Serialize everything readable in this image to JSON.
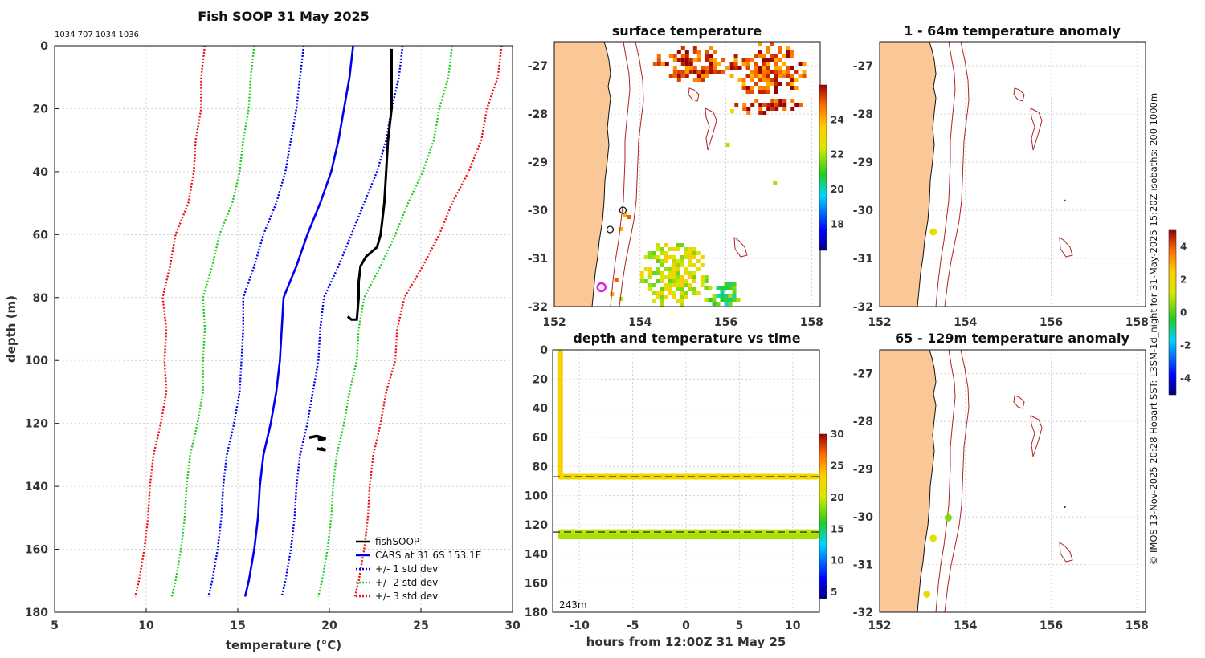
{
  "colors": {
    "land": "#f9c896",
    "coast": "#111111",
    "isobath": "#b22222",
    "fish": "#000000",
    "cars": "#0000ee",
    "std1": "#0000ee",
    "std2": "#22cc22",
    "std3": "#ee1111"
  },
  "chart_data": [
    {
      "id": "profile",
      "type": "line",
      "title": "Fish SOOP 31 May 2025",
      "subtitle": "1034 707 1034 1036",
      "xlabel": "temperature (°C)",
      "ylabel": "depth (m)",
      "xlim": [
        5,
        30
      ],
      "ylim": [
        180,
        0
      ],
      "xticks": [
        5,
        10,
        15,
        20,
        25,
        30
      ],
      "yticks": [
        0,
        20,
        40,
        60,
        80,
        100,
        120,
        140,
        160,
        180
      ],
      "depths": [
        0,
        10,
        20,
        30,
        40,
        50,
        60,
        70,
        80,
        90,
        100,
        110,
        120,
        130,
        140,
        150,
        160,
        170,
        175
      ],
      "cars_mean": [
        21.3,
        21.1,
        20.8,
        20.5,
        20.1,
        19.5,
        18.8,
        18.2,
        17.5,
        17.4,
        17.3,
        17.1,
        16.8,
        16.4,
        16.2,
        16.1,
        15.9,
        15.6,
        15.4
      ],
      "std_dev": [
        2.7,
        2.7,
        2.6,
        2.6,
        2.5,
        2.4,
        2.4,
        2.3,
        2.2,
        2.1,
        2.1,
        2.0,
        2.0,
        2.0,
        2.0,
        2.0,
        2.0,
        2.0,
        2.0
      ],
      "fish_soop": {
        "x": [
          23.4,
          23.4,
          23.4,
          23.2,
          23.1,
          23.0,
          22.9,
          22.8,
          22.6,
          22.0,
          21.7,
          21.6,
          21.6,
          21.5,
          21.2,
          21.0
        ],
        "y": [
          1,
          10,
          20,
          30,
          40,
          50,
          55,
          60,
          64,
          67,
          70,
          75,
          80,
          87,
          87,
          86
        ]
      },
      "fish_soop_deep": {
        "x": [
          18.9,
          19.3,
          19.8,
          19.4,
          19.6,
          19.3,
          19.8,
          19.5
        ],
        "y": [
          124.5,
          124.0,
          124.8,
          125.2,
          124.3,
          128.0,
          128.5,
          127.8
        ]
      },
      "legend": [
        "fishSOOP",
        "CARS at 31.6S 153.1E",
        "+/- 1 std dev",
        "+/- 2 std dev",
        "+/- 3 std dev"
      ]
    },
    {
      "id": "surface",
      "type": "heatmap",
      "title": "surface temperature",
      "xlim": [
        152,
        158.2
      ],
      "ylim": [
        -32,
        -26.5
      ],
      "xticks": [
        152,
        154,
        156,
        158
      ],
      "yticks": [
        -27,
        -28,
        -29,
        -30,
        -31,
        -32
      ],
      "colorbar": {
        "ticks": [
          18,
          20,
          22,
          24
        ],
        "range": [
          16.5,
          26
        ]
      },
      "sst_patches": [
        {
          "lon": [
            154.3,
            156.0
          ],
          "lat": [
            -27.3,
            -26.5
          ],
          "temp": 25.2
        },
        {
          "lon": [
            156.0,
            157.8
          ],
          "lat": [
            -27.6,
            -26.5
          ],
          "temp": 25.0
        },
        {
          "lon": [
            156.2,
            157.7
          ],
          "lat": [
            -28.0,
            -27.6
          ],
          "temp": 25.5
        },
        {
          "lon": [
            154.0,
            155.5
          ],
          "lat": [
            -32.0,
            -30.6
          ],
          "temp": 22.5
        },
        {
          "lon": [
            155.4,
            156.3
          ],
          "lat": [
            -32.0,
            -31.4
          ],
          "temp": 21.0
        }
      ],
      "markers": [
        {
          "lon": 153.6,
          "lat": -30.0,
          "kind": "circle"
        },
        {
          "lon": 153.3,
          "lat": -30.4,
          "kind": "circle"
        },
        {
          "lon": 153.1,
          "lat": -31.6,
          "kind": "target"
        }
      ]
    },
    {
      "id": "timeseries",
      "type": "scatter",
      "title": "depth and temperature vs time",
      "xlabel": "hours from 12:00Z 31 May 25",
      "xlim": [
        -12.5,
        12.5
      ],
      "ylim": [
        180,
        0
      ],
      "xticks": [
        -10,
        -5,
        0,
        5,
        10
      ],
      "yticks": [
        0,
        20,
        40,
        60,
        80,
        100,
        120,
        140,
        160,
        180
      ],
      "annotation": "243m",
      "colorbar": {
        "ticks": [
          5,
          10,
          15,
          20,
          25,
          30
        ],
        "range": [
          4,
          30
        ]
      },
      "segments": [
        {
          "x": [
            -11.8,
            -11.8
          ],
          "y": [
            1,
            87
          ],
          "temp": 23.0
        },
        {
          "x": [
            -11.8,
            12.2
          ],
          "y": [
            87,
            87
          ],
          "temp": 22.0
        },
        {
          "x": [
            -11.8,
            12.2
          ],
          "y": [
            125,
            125
          ],
          "temp": 19.5
        },
        {
          "x": [
            -11.8,
            12.2
          ],
          "y": [
            128,
            128
          ],
          "temp": 19.0
        }
      ],
      "dashed_depths": [
        87,
        125
      ]
    },
    {
      "id": "anom1",
      "type": "scatter",
      "title": "1 - 64m temperature anomaly",
      "xlim": [
        152,
        158.2
      ],
      "ylim": [
        -32,
        -26.5
      ],
      "xticks": [
        152,
        154,
        156,
        158
      ],
      "yticks": [
        -27,
        -28,
        -29,
        -30,
        -31,
        -32
      ],
      "points": [
        {
          "lon": 153.25,
          "lat": -30.45,
          "anom": 1.8
        }
      ]
    },
    {
      "id": "anom2",
      "type": "scatter",
      "title": "65 - 129m temperature anomaly",
      "xlim": [
        152,
        158.2
      ],
      "ylim": [
        -32,
        -26.5
      ],
      "xticks": [
        152,
        154,
        156,
        158
      ],
      "yticks": [
        -27,
        -28,
        -29,
        -30,
        -31,
        -32
      ],
      "points": [
        {
          "lon": 153.6,
          "lat": -30.02,
          "anom": 0.4
        },
        {
          "lon": 153.25,
          "lat": -30.45,
          "anom": 1.5
        },
        {
          "lon": 153.1,
          "lat": -31.62,
          "anom": 1.8
        }
      ]
    },
    {
      "id": "anom_cb",
      "type": "heatmap",
      "colorbar": {
        "ticks": [
          4,
          2,
          0,
          -2,
          -4
        ],
        "range": [
          -5,
          5
        ]
      }
    }
  ],
  "side_caption": "© IMOS 13-Nov-2025 20:28 Hobart SST: L3SM-1d_night for 31-May-2025 15:20Z isobaths: 200  1000m"
}
